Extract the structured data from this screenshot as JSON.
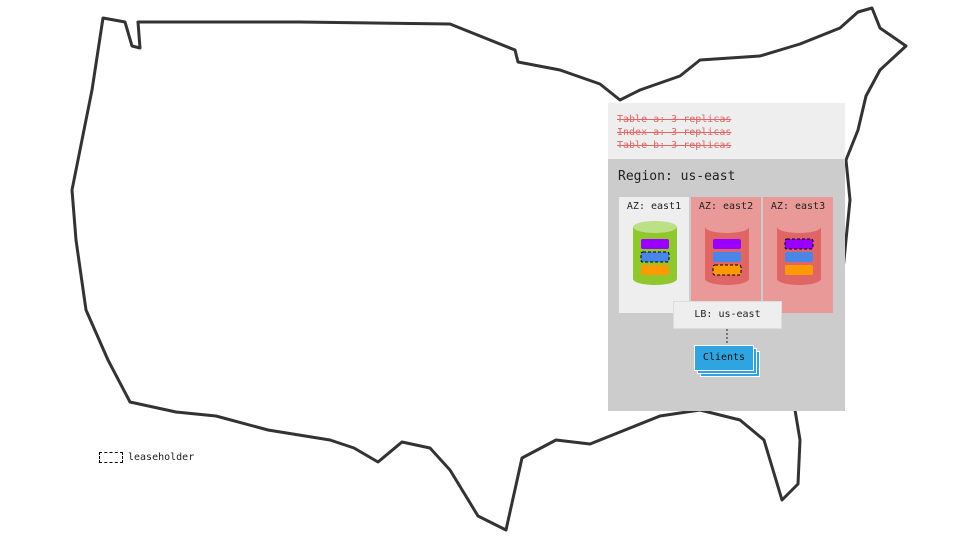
{
  "tables": [
    "Table a: 3 replicas",
    "Index a: 3 replicas",
    "Table b: 3 replicas"
  ],
  "region": "Region: us-east",
  "azs": [
    {
      "label": "AZ: east1",
      "bg": "#eeeeee",
      "body": "#8fc72c",
      "top": "#bce085",
      "leaseholder": 1
    },
    {
      "label": "AZ: east2",
      "bg": "#ea9999",
      "body": "#e06666",
      "top": "#ea9999",
      "leaseholder": 2
    },
    {
      "label": "AZ: east3",
      "bg": "#ea9999",
      "body": "#e06666",
      "top": "#ea9999",
      "leaseholder": 0
    }
  ],
  "range_colors": [
    "#9900ff",
    "#4a86e8",
    "#ff9900"
  ],
  "lb": "LB: us-east",
  "clients": "Clients",
  "legend": "leaseholder"
}
